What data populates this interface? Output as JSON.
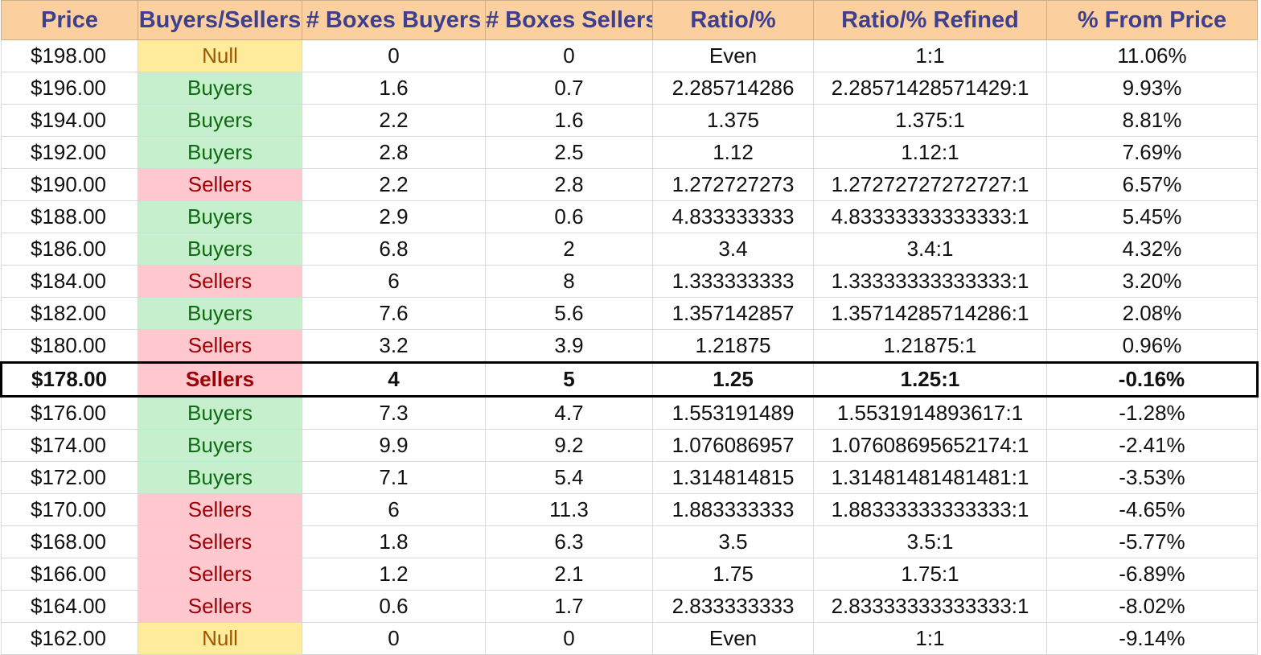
{
  "table": {
    "headers": [
      "Price",
      "Buyers/Sellers",
      "# Boxes Buyers",
      "# Boxes Sellers",
      "Ratio/%",
      "Ratio/% Refined",
      "% From Price"
    ],
    "colors": {
      "header_bg": "#fbcf9e",
      "header_text": "#3e3f8e",
      "buyers_bg": "#c6efce",
      "buyers_text": "#0f6a14",
      "sellers_bg": "#ffc7ce",
      "sellers_text": "#9c0006",
      "null_bg": "#ffeb9c",
      "null_text": "#9c5700"
    },
    "current_row_index": 10,
    "rows": [
      {
        "price": "$198.00",
        "side": "Null",
        "boxes_buyers": "0",
        "boxes_sellers": "0",
        "ratio": "Even",
        "ratio_refined": "1:1",
        "pct_from_price": "11.06%"
      },
      {
        "price": "$196.00",
        "side": "Buyers",
        "boxes_buyers": "1.6",
        "boxes_sellers": "0.7",
        "ratio": "2.285714286",
        "ratio_refined": "2.28571428571429:1",
        "pct_from_price": "9.93%"
      },
      {
        "price": "$194.00",
        "side": "Buyers",
        "boxes_buyers": "2.2",
        "boxes_sellers": "1.6",
        "ratio": "1.375",
        "ratio_refined": "1.375:1",
        "pct_from_price": "8.81%"
      },
      {
        "price": "$192.00",
        "side": "Buyers",
        "boxes_buyers": "2.8",
        "boxes_sellers": "2.5",
        "ratio": "1.12",
        "ratio_refined": "1.12:1",
        "pct_from_price": "7.69%"
      },
      {
        "price": "$190.00",
        "side": "Sellers",
        "boxes_buyers": "2.2",
        "boxes_sellers": "2.8",
        "ratio": "1.272727273",
        "ratio_refined": "1.27272727272727:1",
        "pct_from_price": "6.57%"
      },
      {
        "price": "$188.00",
        "side": "Buyers",
        "boxes_buyers": "2.9",
        "boxes_sellers": "0.6",
        "ratio": "4.833333333",
        "ratio_refined": "4.83333333333333:1",
        "pct_from_price": "5.45%"
      },
      {
        "price": "$186.00",
        "side": "Buyers",
        "boxes_buyers": "6.8",
        "boxes_sellers": "2",
        "ratio": "3.4",
        "ratio_refined": "3.4:1",
        "pct_from_price": "4.32%"
      },
      {
        "price": "$184.00",
        "side": "Sellers",
        "boxes_buyers": "6",
        "boxes_sellers": "8",
        "ratio": "1.333333333",
        "ratio_refined": "1.33333333333333:1",
        "pct_from_price": "3.20%"
      },
      {
        "price": "$182.00",
        "side": "Buyers",
        "boxes_buyers": "7.6",
        "boxes_sellers": "5.6",
        "ratio": "1.357142857",
        "ratio_refined": "1.35714285714286:1",
        "pct_from_price": "2.08%"
      },
      {
        "price": "$180.00",
        "side": "Sellers",
        "boxes_buyers": "3.2",
        "boxes_sellers": "3.9",
        "ratio": "1.21875",
        "ratio_refined": "1.21875:1",
        "pct_from_price": "0.96%"
      },
      {
        "price": "$178.00",
        "side": "Sellers",
        "boxes_buyers": "4",
        "boxes_sellers": "5",
        "ratio": "1.25",
        "ratio_refined": "1.25:1",
        "pct_from_price": "-0.16%"
      },
      {
        "price": "$176.00",
        "side": "Buyers",
        "boxes_buyers": "7.3",
        "boxes_sellers": "4.7",
        "ratio": "1.553191489",
        "ratio_refined": "1.5531914893617:1",
        "pct_from_price": "-1.28%"
      },
      {
        "price": "$174.00",
        "side": "Buyers",
        "boxes_buyers": "9.9",
        "boxes_sellers": "9.2",
        "ratio": "1.076086957",
        "ratio_refined": "1.07608695652174:1",
        "pct_from_price": "-2.41%"
      },
      {
        "price": "$172.00",
        "side": "Buyers",
        "boxes_buyers": "7.1",
        "boxes_sellers": "5.4",
        "ratio": "1.314814815",
        "ratio_refined": "1.31481481481481:1",
        "pct_from_price": "-3.53%"
      },
      {
        "price": "$170.00",
        "side": "Sellers",
        "boxes_buyers": "6",
        "boxes_sellers": "11.3",
        "ratio": "1.883333333",
        "ratio_refined": "1.88333333333333:1",
        "pct_from_price": "-4.65%"
      },
      {
        "price": "$168.00",
        "side": "Sellers",
        "boxes_buyers": "1.8",
        "boxes_sellers": "6.3",
        "ratio": "3.5",
        "ratio_refined": "3.5:1",
        "pct_from_price": "-5.77%"
      },
      {
        "price": "$166.00",
        "side": "Sellers",
        "boxes_buyers": "1.2",
        "boxes_sellers": "2.1",
        "ratio": "1.75",
        "ratio_refined": "1.75:1",
        "pct_from_price": "-6.89%"
      },
      {
        "price": "$164.00",
        "side": "Sellers",
        "boxes_buyers": "0.6",
        "boxes_sellers": "1.7",
        "ratio": "2.833333333",
        "ratio_refined": "2.83333333333333:1",
        "pct_from_price": "-8.02%"
      },
      {
        "price": "$162.00",
        "side": "Null",
        "boxes_buyers": "0",
        "boxes_sellers": "0",
        "ratio": "Even",
        "ratio_refined": "1:1",
        "pct_from_price": "-9.14%"
      }
    ]
  }
}
